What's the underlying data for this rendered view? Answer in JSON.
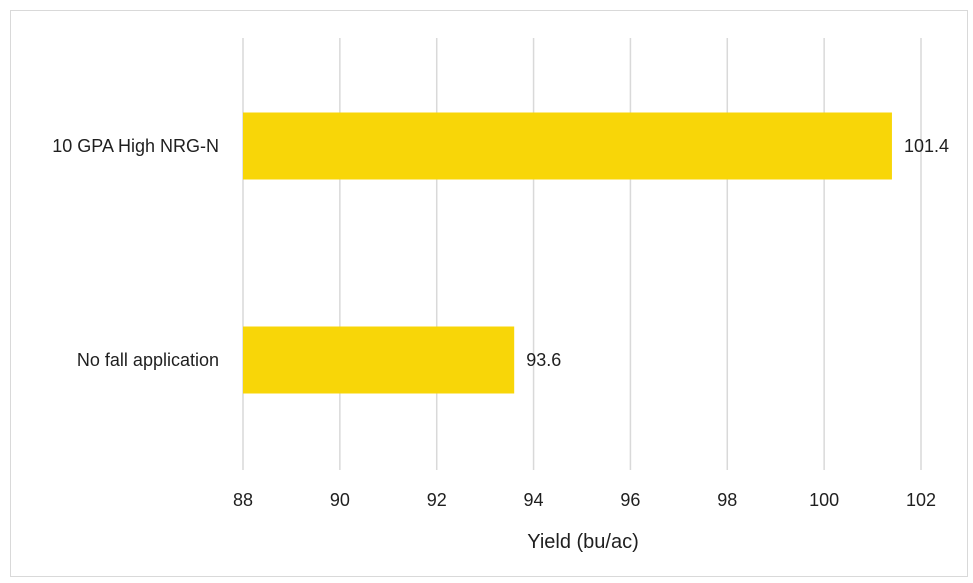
{
  "chart_data": {
    "type": "bar",
    "orientation": "horizontal",
    "categories": [
      "10 GPA High NRG-N",
      "No fall application"
    ],
    "values": [
      101.4,
      93.6
    ],
    "data_labels": [
      "101.4",
      "93.6"
    ],
    "title": "",
    "xlabel": "Yield (bu/ac)",
    "ylabel": "",
    "xlim": [
      88,
      102
    ],
    "x_ticks": [
      88,
      90,
      92,
      94,
      96,
      98,
      100,
      102
    ],
    "x_tick_labels": [
      "88",
      "90",
      "92",
      "94",
      "96",
      "98",
      "100",
      "102"
    ],
    "grid": "vertical",
    "legend": "none",
    "bar_color": "#f8d608",
    "gridline_color": "#d9d9d9"
  }
}
